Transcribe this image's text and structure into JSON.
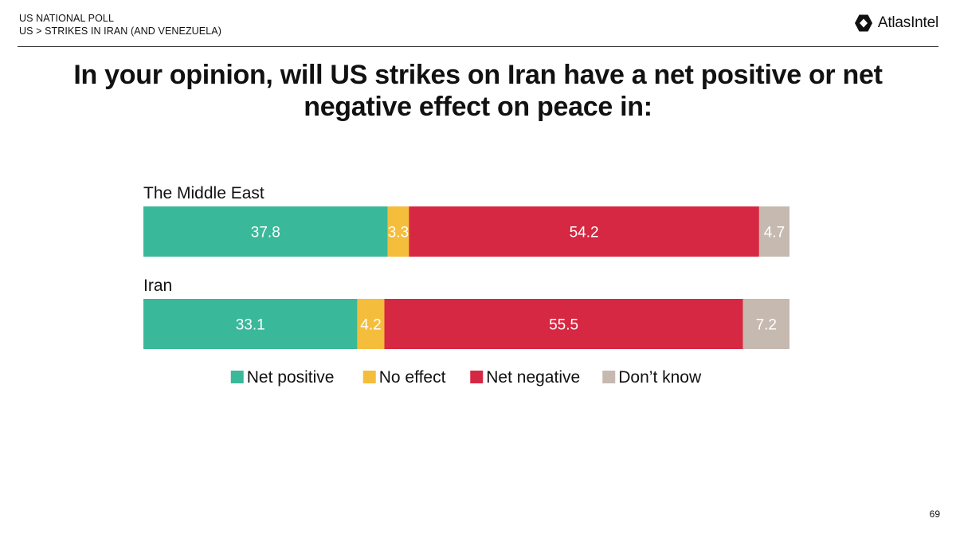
{
  "header": {
    "line1": "US NATIONAL POLL",
    "line2": "US > STRIKES IN IRAN (AND VENEZUELA)",
    "brand_icon": "atlasintel-logo-icon",
    "brand": "AtlasIntel"
  },
  "title": "In your opinion, will US strikes on Iran have a net positive or net negative effect on peace in:",
  "page_number": "69",
  "chart_data": {
    "type": "bar",
    "orientation": "horizontal",
    "stacked": true,
    "title": "In your opinion, will US strikes on Iran have a net positive or net negative effect on peace in:",
    "xlabel": "",
    "ylabel": "",
    "xlim": [
      0,
      100
    ],
    "grid": false,
    "legend_position": "bottom",
    "categories": [
      "The Middle East",
      "Iran"
    ],
    "series": [
      {
        "name": "Net positive",
        "color": "#3ab89a",
        "values": [
          37.8,
          33.1
        ]
      },
      {
        "name": "No effect",
        "color": "#f5bd3c",
        "values": [
          3.3,
          4.2
        ]
      },
      {
        "name": "Net negative",
        "color": "#d62843",
        "values": [
          54.2,
          55.5
        ]
      },
      {
        "name": "Don’t know",
        "color": "#c6b9b0",
        "values": [
          4.7,
          7.2
        ]
      }
    ]
  }
}
